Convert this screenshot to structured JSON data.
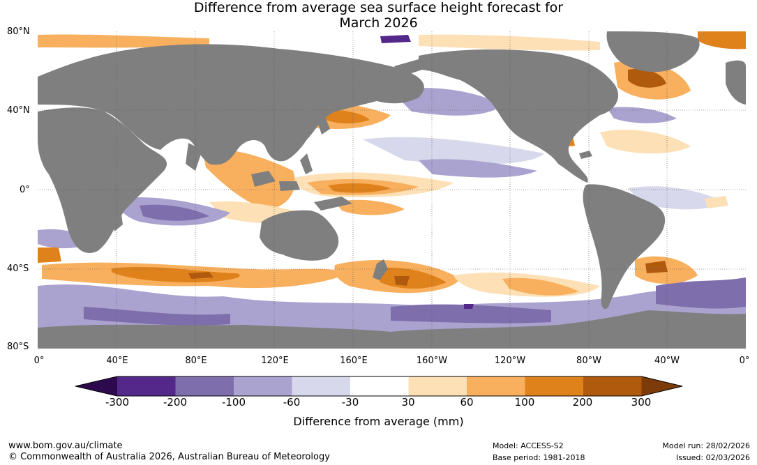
{
  "title_line1": "Difference from average sea surface height forecast for",
  "title_line2": "March 2026",
  "lat_labels": [
    "80°N",
    "40°N",
    "0°",
    "40°S",
    "80°S"
  ],
  "lon_labels": [
    "0°",
    "40°E",
    "80°E",
    "120°E",
    "160°E",
    "160°W",
    "120°W",
    "80°W",
    "40°W",
    "0°"
  ],
  "colorbar": {
    "title": "Difference from average (mm)",
    "ticks": [
      "-300",
      "-200",
      "-100",
      "-60",
      "-30",
      "30",
      "60",
      "100",
      "200",
      "300"
    ],
    "colors": [
      "#2d0a4e",
      "#54288a",
      "#7e6eac",
      "#aba3cf",
      "#d8d8ec",
      "#ffffff",
      "#fde0b5",
      "#f8b05e",
      "#e0821c",
      "#b05a0e",
      "#7c3b08"
    ]
  },
  "land_color": "#7f7f7f",
  "footer": {
    "url": "www.bom.gov.au/climate",
    "copyright": "© Commonwealth of Australia 2026, Australian Bureau of Meteorology",
    "model": "Model: ACCESS-S2",
    "base_period": "Base period: 1981-2018",
    "model_run": "Model run: 28/02/2026",
    "issued": "Issued: 02/03/2026"
  }
}
